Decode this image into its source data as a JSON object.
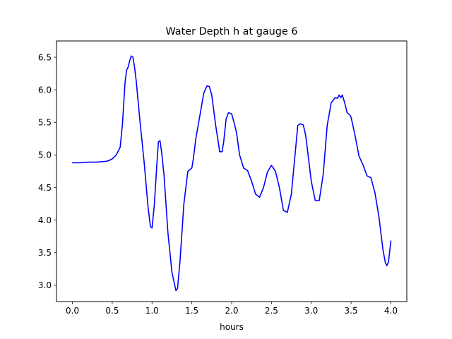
{
  "chart_data": {
    "type": "line",
    "title": "Water Depth h at gauge 6",
    "xlabel": "hours",
    "ylabel": "",
    "xlim": [
      -0.2,
      4.2
    ],
    "ylim": [
      2.75,
      6.75
    ],
    "xticks": [
      0.0,
      0.5,
      1.0,
      1.5,
      2.0,
      2.5,
      3.0,
      3.5,
      4.0
    ],
    "xtick_labels": [
      "0.0",
      "0.5",
      "1.0",
      "1.5",
      "2.0",
      "2.5",
      "3.0",
      "3.5",
      "4.0"
    ],
    "yticks": [
      3.0,
      3.5,
      4.0,
      4.5,
      5.0,
      5.5,
      6.0,
      6.5
    ],
    "ytick_labels": [
      "3.0",
      "3.5",
      "4.0",
      "4.5",
      "5.0",
      "5.5",
      "6.0",
      "6.5"
    ],
    "grid": false,
    "line_color": "#0000ff",
    "series": [
      {
        "x": [
          0.0,
          0.1,
          0.2,
          0.3,
          0.4,
          0.45,
          0.5,
          0.55,
          0.6,
          0.63,
          0.66,
          0.68,
          0.7,
          0.72,
          0.74,
          0.76,
          0.78,
          0.8,
          0.85,
          0.9,
          0.95,
          0.98,
          1.0,
          1.03,
          1.06,
          1.08,
          1.1,
          1.12,
          1.15,
          1.2,
          1.25,
          1.3,
          1.32,
          1.35,
          1.4,
          1.45,
          1.48,
          1.5,
          1.52,
          1.55,
          1.6,
          1.65,
          1.69,
          1.72,
          1.75,
          1.8,
          1.85,
          1.88,
          1.9,
          1.93,
          1.96,
          2.0,
          2.03,
          2.06,
          2.1,
          2.15,
          2.2,
          2.25,
          2.3,
          2.35,
          2.4,
          2.45,
          2.5,
          2.55,
          2.6,
          2.65,
          2.7,
          2.75,
          2.8,
          2.83,
          2.86,
          2.9,
          2.93,
          2.96,
          3.0,
          3.05,
          3.1,
          3.15,
          3.2,
          3.25,
          3.3,
          3.33,
          3.35,
          3.37,
          3.39,
          3.42,
          3.45,
          3.48,
          3.5,
          3.55,
          3.6,
          3.65,
          3.7,
          3.75,
          3.8,
          3.85,
          3.9,
          3.93,
          3.95,
          3.97,
          4.0
        ],
        "y": [
          4.88,
          4.88,
          4.89,
          4.89,
          4.9,
          4.91,
          4.94,
          5.0,
          5.12,
          5.5,
          6.1,
          6.3,
          6.35,
          6.45,
          6.52,
          6.5,
          6.35,
          6.15,
          5.5,
          4.9,
          4.2,
          3.9,
          3.88,
          4.25,
          4.85,
          5.2,
          5.22,
          5.05,
          4.7,
          3.8,
          3.2,
          2.92,
          2.95,
          3.35,
          4.25,
          4.75,
          4.78,
          4.8,
          4.95,
          5.25,
          5.6,
          5.95,
          6.06,
          6.05,
          5.92,
          5.45,
          5.05,
          5.05,
          5.2,
          5.55,
          5.65,
          5.63,
          5.5,
          5.35,
          5.0,
          4.8,
          4.76,
          4.6,
          4.4,
          4.35,
          4.5,
          4.74,
          4.84,
          4.75,
          4.5,
          4.15,
          4.12,
          4.4,
          5.05,
          5.45,
          5.48,
          5.46,
          5.3,
          5.0,
          4.6,
          4.3,
          4.3,
          4.7,
          5.45,
          5.8,
          5.88,
          5.87,
          5.92,
          5.88,
          5.92,
          5.8,
          5.65,
          5.62,
          5.58,
          5.3,
          4.98,
          4.85,
          4.68,
          4.65,
          4.42,
          4.05,
          3.55,
          3.35,
          3.3,
          3.36,
          3.68
        ]
      }
    ]
  }
}
